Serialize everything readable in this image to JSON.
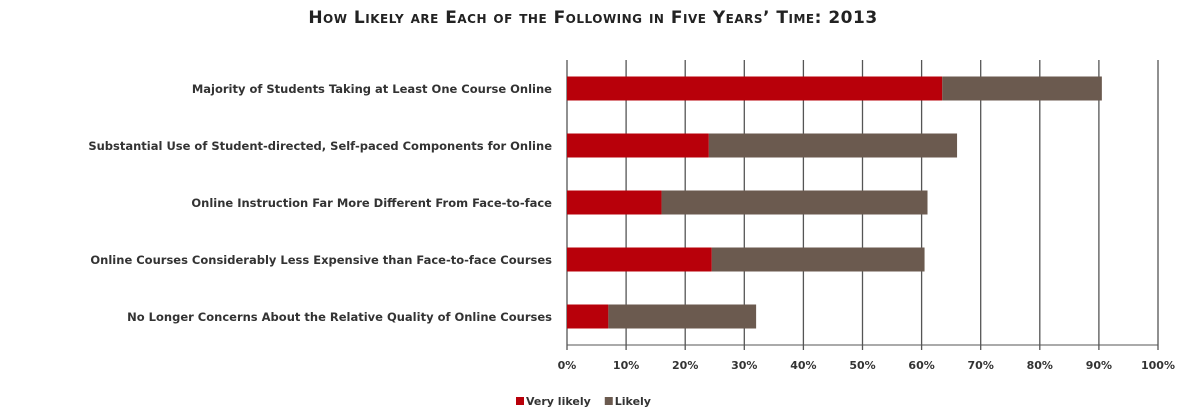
{
  "chart_data": {
    "type": "stacked_barh",
    "title": "How Likely are Each of the Following in Five Years’ Time: 2013",
    "categories": [
      "Majority of Students Taking at Least One Course Online",
      "Substantial Use of Student-directed, Self-paced Components for Online",
      "Online Instruction Far More Different From Face-to-face",
      "Online Courses Considerably Less Expensive than Face-to-face Courses",
      "No Longer Concerns About the Relative Quality of Online Courses"
    ],
    "series": [
      {
        "name": "Very likely",
        "color": "#b8000a",
        "values": [
          63.5,
          24,
          16,
          24.5,
          7
        ]
      },
      {
        "name": "Likely",
        "color": "#6b5a4f",
        "values": [
          27,
          42,
          45,
          36,
          25
        ]
      }
    ],
    "xlim": [
      0,
      100
    ],
    "xticks": [
      {
        "value": 0,
        "label": "0%"
      },
      {
        "value": 10,
        "label": "10%"
      },
      {
        "value": 20,
        "label": "20%"
      },
      {
        "value": 30,
        "label": "30%"
      },
      {
        "value": 40,
        "label": "40%"
      },
      {
        "value": 50,
        "label": "50%"
      },
      {
        "value": 60,
        "label": "60%"
      },
      {
        "value": 70,
        "label": "70%"
      },
      {
        "value": 80,
        "label": "80%"
      },
      {
        "value": 90,
        "label": "90%"
      },
      {
        "value": 100,
        "label": "100%"
      }
    ],
    "grid": true,
    "legend": "bottom"
  }
}
